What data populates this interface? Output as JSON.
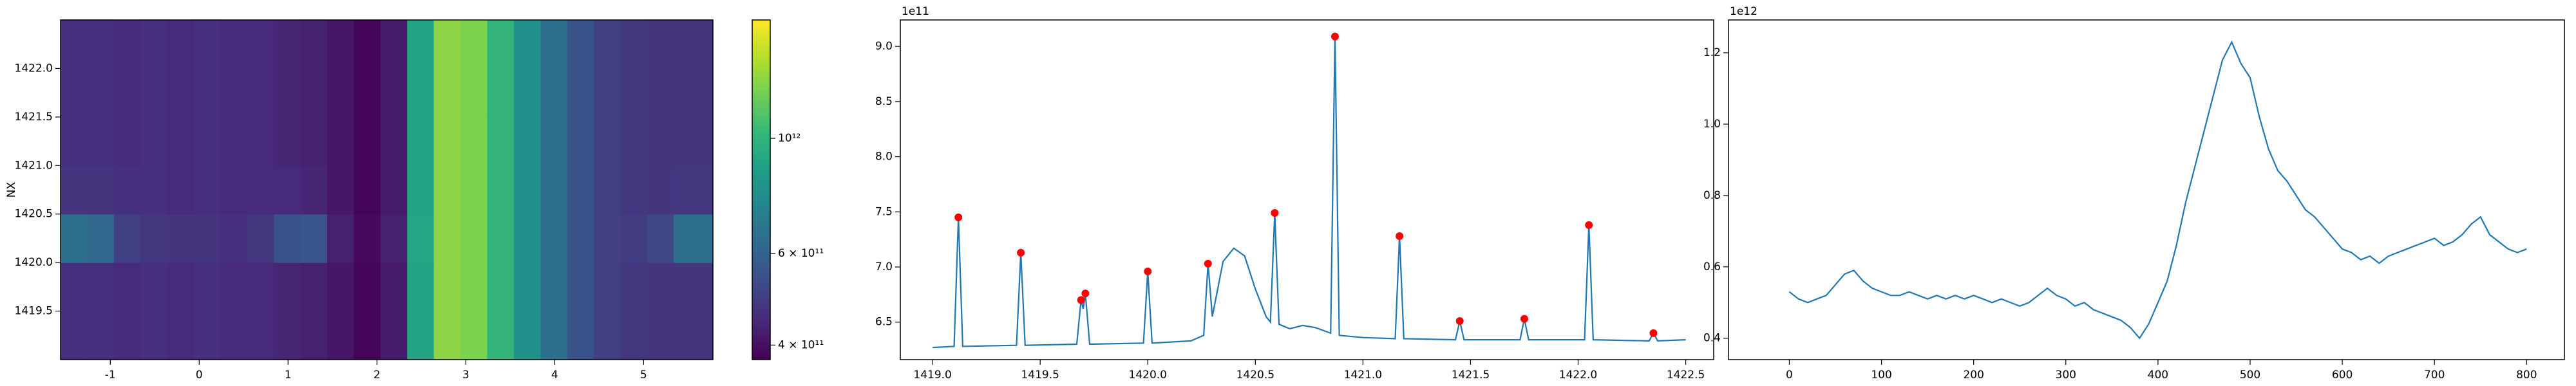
{
  "chart_data": [
    {
      "type": "heatmap",
      "ylabel": "NX",
      "cmap": "viridis",
      "color_scale": "log",
      "xlim": [
        -1.56,
        5.78
      ],
      "ylim": [
        1419.0,
        1422.5
      ],
      "xticks": [
        -1,
        0,
        1,
        2,
        3,
        4,
        5
      ],
      "yticks": [
        1419.5,
        {
          "value": 1420.0,
          "label": "1420.0"
        },
        1420.5,
        {
          "value": 1421.0,
          "label": "1421.0"
        },
        1421.5,
        {
          "value": 1422.0,
          "label": "1422.0"
        }
      ],
      "clim": [
        375000000000.0,
        1690000000000.0
      ],
      "cticks": [
        {
          "value": 400000000000.0,
          "label": "4 × 10¹¹"
        },
        {
          "value": 600000000000.0,
          "label": "6 × 10¹¹"
        },
        {
          "value": 1000000000000.0,
          "label": "10¹²"
        }
      ],
      "x": [
        -1.41,
        -1.11,
        -0.81,
        -0.51,
        -0.21,
        0.09,
        0.39,
        0.69,
        0.99,
        1.29,
        1.59,
        1.89,
        2.19,
        2.49,
        2.79,
        3.09,
        3.39,
        3.69,
        3.99,
        4.29,
        4.59,
        4.89,
        5.19,
        5.49
      ],
      "y": [
        1419.25,
        1419.75,
        1420.25,
        1420.75,
        1421.25,
        1421.75,
        1422.25
      ],
      "z": [
        [
          460000000000.0,
          460000000000.0,
          450000000000.0,
          460000000000.0,
          450000000000.0,
          460000000000.0,
          450000000000.0,
          450000000000.0,
          440000000000.0,
          430000000000.0,
          410000000000.0,
          380000000000.0,
          420000000000.0,
          900000000000.0,
          1300000000000.0,
          1250000000000.0,
          1000000000000.0,
          800000000000.0,
          650000000000.0,
          550000000000.0,
          500000000000.0,
          480000000000.0,
          470000000000.0,
          470000000000.0
        ],
        [
          460000000000.0,
          460000000000.0,
          450000000000.0,
          460000000000.0,
          450000000000.0,
          460000000000.0,
          450000000000.0,
          450000000000.0,
          440000000000.0,
          430000000000.0,
          410000000000.0,
          380000000000.0,
          420000000000.0,
          900000000000.0,
          1300000000000.0,
          1250000000000.0,
          1000000000000.0,
          800000000000.0,
          650000000000.0,
          550000000000.0,
          500000000000.0,
          480000000000.0,
          470000000000.0,
          470000000000.0
        ],
        [
          650000000000.0,
          620000000000.0,
          500000000000.0,
          480000000000.0,
          470000000000.0,
          470000000000.0,
          460000000000.0,
          480000000000.0,
          550000000000.0,
          560000000000.0,
          430000000000.0,
          390000000000.0,
          430000000000.0,
          910000000000.0,
          1300000000000.0,
          1250000000000.0,
          1000000000000.0,
          800000000000.0,
          650000000000.0,
          550000000000.0,
          500000000000.0,
          490000000000.0,
          520000000000.0,
          650000000000.0
        ],
        [
          470000000000.0,
          470000000000.0,
          460000000000.0,
          460000000000.0,
          450000000000.0,
          460000000000.0,
          450000000000.0,
          450000000000.0,
          450000000000.0,
          440000000000.0,
          410000000000.0,
          380000000000.0,
          420000000000.0,
          900000000000.0,
          1300000000000.0,
          1250000000000.0,
          1000000000000.0,
          800000000000.0,
          650000000000.0,
          550000000000.0,
          500000000000.0,
          480000000000.0,
          470000000000.0,
          480000000000.0
        ],
        [
          460000000000.0,
          460000000000.0,
          450000000000.0,
          460000000000.0,
          450000000000.0,
          460000000000.0,
          450000000000.0,
          450000000000.0,
          440000000000.0,
          430000000000.0,
          410000000000.0,
          380000000000.0,
          420000000000.0,
          900000000000.0,
          1300000000000.0,
          1250000000000.0,
          1000000000000.0,
          800000000000.0,
          650000000000.0,
          550000000000.0,
          500000000000.0,
          480000000000.0,
          470000000000.0,
          470000000000.0
        ],
        [
          460000000000.0,
          460000000000.0,
          450000000000.0,
          460000000000.0,
          450000000000.0,
          460000000000.0,
          450000000000.0,
          450000000000.0,
          440000000000.0,
          430000000000.0,
          410000000000.0,
          380000000000.0,
          420000000000.0,
          900000000000.0,
          1300000000000.0,
          1250000000000.0,
          1000000000000.0,
          800000000000.0,
          650000000000.0,
          550000000000.0,
          500000000000.0,
          480000000000.0,
          470000000000.0,
          470000000000.0
        ],
        [
          460000000000.0,
          460000000000.0,
          450000000000.0,
          460000000000.0,
          450000000000.0,
          460000000000.0,
          450000000000.0,
          450000000000.0,
          440000000000.0,
          430000000000.0,
          410000000000.0,
          380000000000.0,
          420000000000.0,
          900000000000.0,
          1300000000000.0,
          1250000000000.0,
          1000000000000.0,
          800000000000.0,
          650000000000.0,
          550000000000.0,
          500000000000.0,
          480000000000.0,
          470000000000.0,
          470000000000.0
        ]
      ]
    },
    {
      "type": "line",
      "offset_label": "1e11",
      "xlim": [
        1418.85,
        1422.63
      ],
      "ylim": [
        6.16,
        9.24
      ],
      "xticks": [
        {
          "value": 1419.0,
          "label": "1419.0"
        },
        1419.5,
        {
          "value": 1420.0,
          "label": "1420.0"
        },
        1420.5,
        {
          "value": 1421.0,
          "label": "1421.0"
        },
        1421.5,
        {
          "value": 1422.0,
          "label": "1422.0"
        },
        1422.5
      ],
      "yticks": [
        6.5,
        {
          "value": 7.0,
          "label": "7.0"
        },
        7.5,
        {
          "value": 8.0,
          "label": "8.0"
        },
        8.5,
        {
          "value": 9.0,
          "label": "9.0"
        }
      ],
      "series": [
        {
          "style": "line",
          "color": "#1f77b4",
          "x": [
            1419.0,
            1419.1,
            1419.12,
            1419.14,
            1419.39,
            1419.41,
            1419.43,
            1419.67,
            1419.69,
            1419.7,
            1419.71,
            1419.73,
            1419.98,
            1420.0,
            1420.02,
            1420.2,
            1420.26,
            1420.28,
            1420.3,
            1420.35,
            1420.4,
            1420.45,
            1420.5,
            1420.55,
            1420.57,
            1420.59,
            1420.61,
            1420.66,
            1420.72,
            1420.78,
            1420.85,
            1420.87,
            1420.89,
            1421.0,
            1421.15,
            1421.17,
            1421.19,
            1421.43,
            1421.45,
            1421.47,
            1421.73,
            1421.75,
            1421.77,
            1422.03,
            1422.05,
            1422.07,
            1422.33,
            1422.35,
            1422.37,
            1422.5
          ],
          "values": [
            6.27,
            6.28,
            7.45,
            6.28,
            6.29,
            7.13,
            6.29,
            6.3,
            6.7,
            6.62,
            6.76,
            6.3,
            6.31,
            6.96,
            6.31,
            6.33,
            6.38,
            7.03,
            6.55,
            7.05,
            7.17,
            7.1,
            6.8,
            6.55,
            6.5,
            7.49,
            6.48,
            6.44,
            6.47,
            6.45,
            6.4,
            9.09,
            6.38,
            6.36,
            6.35,
            7.28,
            6.35,
            6.34,
            6.51,
            6.34,
            6.34,
            6.53,
            6.34,
            6.34,
            7.38,
            6.34,
            6.33,
            6.4,
            6.33,
            6.34
          ]
        },
        {
          "style": "marker",
          "color": "#ff0000",
          "x": [
            1419.12,
            1419.41,
            1419.69,
            1419.71,
            1420.0,
            1420.28,
            1420.59,
            1420.87,
            1421.17,
            1421.45,
            1421.75,
            1422.05,
            1422.35
          ],
          "values": [
            7.45,
            7.13,
            6.7,
            6.76,
            6.96,
            7.03,
            7.49,
            9.09,
            7.28,
            6.51,
            6.53,
            7.38,
            6.4
          ]
        }
      ]
    },
    {
      "type": "line",
      "offset_label": "1e12",
      "xlim": [
        -66,
        841
      ],
      "ylim": [
        0.34,
        1.292
      ],
      "xticks": [
        0,
        100,
        200,
        300,
        400,
        500,
        600,
        700,
        800
      ],
      "yticks": [
        0.4,
        0.6,
        0.8,
        {
          "value": 1.0,
          "label": "1.0"
        },
        1.2
      ],
      "series": [
        {
          "style": "line",
          "color": "#1f77b4",
          "x": [
            0,
            10,
            20,
            30,
            40,
            50,
            60,
            70,
            80,
            90,
            100,
            110,
            120,
            130,
            140,
            150,
            160,
            170,
            180,
            190,
            200,
            210,
            220,
            230,
            240,
            250,
            260,
            270,
            280,
            290,
            300,
            310,
            320,
            330,
            340,
            350,
            360,
            370,
            380,
            390,
            400,
            410,
            420,
            430,
            440,
            450,
            460,
            470,
            480,
            490,
            500,
            510,
            520,
            530,
            540,
            550,
            560,
            570,
            580,
            590,
            600,
            610,
            620,
            630,
            640,
            650,
            660,
            670,
            680,
            690,
            700,
            710,
            720,
            730,
            740,
            750,
            760,
            770,
            780,
            790,
            800
          ],
          "values": [
            0.53,
            0.51,
            0.5,
            0.51,
            0.52,
            0.55,
            0.58,
            0.59,
            0.56,
            0.54,
            0.53,
            0.52,
            0.52,
            0.53,
            0.52,
            0.51,
            0.52,
            0.51,
            0.52,
            0.51,
            0.52,
            0.51,
            0.5,
            0.51,
            0.5,
            0.49,
            0.5,
            0.52,
            0.54,
            0.52,
            0.51,
            0.49,
            0.5,
            0.48,
            0.47,
            0.46,
            0.45,
            0.43,
            0.4,
            0.44,
            0.5,
            0.56,
            0.66,
            0.78,
            0.88,
            0.98,
            1.08,
            1.18,
            1.23,
            1.17,
            1.13,
            1.02,
            0.93,
            0.87,
            0.84,
            0.8,
            0.76,
            0.74,
            0.71,
            0.68,
            0.65,
            0.64,
            0.62,
            0.63,
            0.61,
            0.63,
            0.64,
            0.65,
            0.66,
            0.67,
            0.68,
            0.66,
            0.67,
            0.69,
            0.72,
            0.74,
            0.69,
            0.67,
            0.65,
            0.64,
            0.65
          ]
        }
      ]
    }
  ]
}
